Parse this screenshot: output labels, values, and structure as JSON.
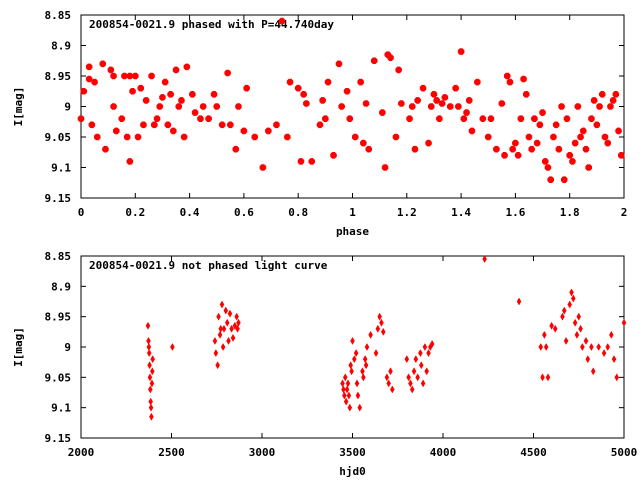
{
  "chart_data": [
    {
      "type": "scatter",
      "title": "200854-0021.9 phased with P=44.740day",
      "xlabel": "phase",
      "ylabel": "I[mag]",
      "xlim": [
        0,
        2
      ],
      "ylim": [
        8.85,
        9.15
      ],
      "y_inverted": true,
      "x_ticks": [
        "0",
        "0.2",
        "0.4",
        "0.6",
        "0.8",
        "1",
        "1.2",
        "1.4",
        "1.6",
        "1.8",
        "2"
      ],
      "y_ticks": [
        "8.85",
        "8.9",
        "8.95",
        "9",
        "9.05",
        "9.1",
        "9.15"
      ],
      "marker_color": "#ff0000",
      "marker": "star",
      "x": [
        0.0,
        0.01,
        0.03,
        0.03,
        0.04,
        0.05,
        0.06,
        0.08,
        0.09,
        0.11,
        0.12,
        0.12,
        0.13,
        0.15,
        0.16,
        0.17,
        0.18,
        0.18,
        0.19,
        0.2,
        0.21,
        0.22,
        0.23,
        0.24,
        0.26,
        0.27,
        0.28,
        0.29,
        0.3,
        0.31,
        0.32,
        0.33,
        0.34,
        0.35,
        0.36,
        0.37,
        0.38,
        0.39,
        0.41,
        0.42,
        0.44,
        0.45,
        0.47,
        0.49,
        0.5,
        0.52,
        0.54,
        0.55,
        0.57,
        0.58,
        0.6,
        0.61,
        0.64,
        0.67,
        0.69,
        0.72,
        0.74,
        0.76,
        0.77,
        0.8,
        0.81,
        0.82,
        0.83,
        0.85,
        0.88,
        0.89,
        0.9,
        0.91,
        0.93,
        0.95,
        0.96,
        0.98,
        0.99,
        1.01,
        1.03,
        1.04,
        1.05,
        1.06,
        1.08,
        1.11,
        1.12,
        1.13,
        1.14,
        1.16,
        1.17,
        1.18,
        1.21,
        1.22,
        1.23,
        1.24,
        1.26,
        1.28,
        1.29,
        1.3,
        1.31,
        1.32,
        1.33,
        1.34,
        1.36,
        1.38,
        1.39,
        1.4,
        1.41,
        1.42,
        1.43,
        1.44,
        1.46,
        1.48,
        1.5,
        1.51,
        1.53,
        1.55,
        1.56,
        1.57,
        1.58,
        1.59,
        1.6,
        1.61,
        1.62,
        1.63,
        1.64,
        1.65,
        1.66,
        1.67,
        1.68,
        1.69,
        1.7,
        1.71,
        1.72,
        1.73,
        1.74,
        1.75,
        1.76,
        1.77,
        1.78,
        1.79,
        1.8,
        1.81,
        1.82,
        1.83,
        1.84,
        1.85,
        1.86,
        1.87,
        1.88,
        1.89,
        1.9,
        1.91,
        1.92,
        1.93,
        1.94,
        1.95,
        1.96,
        1.97,
        1.98,
        1.99
      ],
      "y": [
        9.02,
        8.975,
        8.935,
        8.955,
        9.03,
        8.96,
        9.05,
        8.93,
        9.07,
        8.94,
        9.0,
        8.95,
        9.04,
        9.02,
        8.95,
        9.05,
        8.95,
        9.09,
        8.975,
        8.95,
        9.05,
        8.97,
        9.03,
        8.99,
        8.95,
        9.03,
        9.02,
        9.0,
        8.985,
        8.96,
        9.03,
        8.98,
        9.04,
        8.94,
        9.0,
        8.99,
        9.05,
        8.935,
        8.98,
        9.01,
        9.02,
        9.0,
        9.02,
        8.98,
        9.0,
        9.03,
        8.945,
        9.03,
        9.07,
        9.0,
        9.04,
        8.97,
        9.05,
        9.1,
        9.04,
        9.03,
        8.86,
        9.05,
        8.96,
        8.97,
        9.09,
        8.98,
        8.995,
        9.09,
        9.03,
        8.99,
        9.02,
        8.96,
        9.08,
        8.93,
        9.0,
        8.975,
        9.02,
        9.05,
        8.96,
        9.06,
        8.995,
        9.07,
        8.925,
        9.01,
        9.1,
        8.915,
        8.92,
        9.05,
        8.94,
        8.995,
        9.02,
        9.0,
        9.07,
        8.99,
        8.97,
        9.06,
        9.0,
        8.98,
        8.99,
        9.02,
        8.995,
        8.985,
        9.0,
        8.97,
        9.0,
        8.91,
        9.02,
        9.01,
        8.99,
        9.04,
        8.96,
        9.02,
        9.05,
        9.02,
        9.07,
        8.995,
        9.08,
        8.95,
        8.96,
        9.07,
        9.06,
        9.08,
        9.02,
        8.955,
        8.98,
        9.05,
        9.07,
        9.02,
        9.06,
        9.03,
        9.01,
        9.09,
        9.1,
        9.12,
        9.05,
        9.03,
        9.07,
        9.0,
        9.12,
        9.02,
        9.08,
        9.09,
        9.06,
        9.0,
        9.05,
        9.04,
        9.07,
        9.1,
        9.02,
        8.99,
        9.03,
        9.0,
        8.98,
        9.05,
        9.06,
        9.0,
        8.99,
        8.98,
        9.04,
        9.08
      ]
    },
    {
      "type": "scatter",
      "title": "200854-0021.9 not phased light curve",
      "xlabel": "hjd0",
      "ylabel": "I[mag]",
      "xlim": [
        2000,
        5000
      ],
      "ylim": [
        8.85,
        9.15
      ],
      "y_inverted": true,
      "x_ticks": [
        "2000",
        "2500",
        "3000",
        "3500",
        "4000",
        "4500",
        "5000"
      ],
      "y_ticks": [
        "8.85",
        "8.9",
        "8.95",
        "9",
        "9.05",
        "9.1",
        "9.15"
      ],
      "marker_color": "#ff0000",
      "marker": "diamond",
      "x": [
        2370,
        2373,
        2375,
        2377,
        2379,
        2381,
        2383,
        2385,
        2387,
        2389,
        2392,
        2394,
        2396,
        2505,
        2740,
        2745,
        2755,
        2760,
        2768,
        2772,
        2779,
        2785,
        2790,
        2800,
        2808,
        2815,
        2823,
        2832,
        2840,
        2850,
        2860,
        2865,
        2870,
        3445,
        3450,
        3455,
        3460,
        3465,
        3470,
        3475,
        3480,
        3485,
        3490,
        3495,
        3500,
        3510,
        3520,
        3525,
        3530,
        3540,
        3555,
        3560,
        3570,
        3575,
        3580,
        3600,
        3630,
        3640,
        3650,
        3660,
        3670,
        3690,
        3700,
        3710,
        3720,
        3800,
        3810,
        3820,
        3830,
        3840,
        3850,
        3860,
        3875,
        3880,
        3890,
        3900,
        3910,
        3920,
        3930,
        3940,
        4230,
        4420,
        4540,
        4550,
        4560,
        4570,
        4580,
        4600,
        4620,
        4660,
        4670,
        4680,
        4700,
        4710,
        4720,
        4730,
        4740,
        4750,
        4760,
        4770,
        4790,
        4800,
        4820,
        4830,
        4860,
        4890,
        4910,
        4930,
        4945,
        4960,
        5000
      ],
      "y": [
        8.965,
        8.99,
        9.0,
        9.01,
        9.03,
        9.05,
        9.07,
        9.09,
        9.1,
        9.115,
        9.06,
        9.04,
        9.02,
        9.0,
        8.99,
        9.01,
        9.03,
        8.95,
        8.98,
        8.97,
        8.93,
        9.0,
        8.97,
        8.94,
        8.96,
        8.99,
        8.945,
        8.97,
        8.985,
        8.965,
        8.95,
        8.97,
        8.96,
        9.06,
        9.07,
        9.08,
        9.05,
        9.09,
        9.07,
        9.06,
        9.08,
        9.1,
        9.03,
        9.04,
        8.99,
        9.02,
        9.01,
        9.06,
        9.08,
        9.1,
        9.04,
        9.05,
        9.02,
        9.03,
        9.0,
        8.98,
        9.01,
        8.97,
        8.95,
        8.96,
        8.975,
        9.05,
        9.06,
        9.04,
        9.07,
        9.02,
        9.05,
        9.06,
        9.07,
        9.04,
        9.02,
        9.05,
        9.01,
        9.03,
        9.06,
        9.0,
        9.04,
        9.01,
        9.0,
        8.995,
        8.855,
        8.925,
        9.0,
        9.05,
        8.98,
        9.0,
        9.05,
        8.965,
        8.97,
        8.95,
        8.94,
        8.99,
        8.93,
        8.91,
        8.92,
        8.96,
        8.98,
        8.95,
        8.97,
        9.0,
        8.99,
        9.02,
        9.0,
        9.04,
        9.0,
        9.01,
        9.0,
        8.98,
        9.02,
        9.05,
        8.96
      ]
    }
  ]
}
